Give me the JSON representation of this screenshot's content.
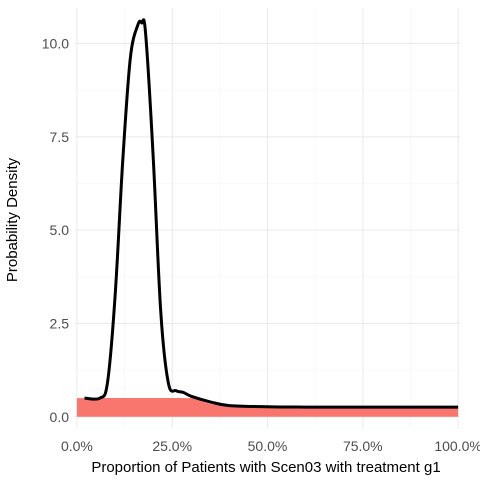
{
  "chart_data": {
    "type": "area",
    "title": "",
    "xlabel": "Proportion of Patients with Scen03 with treatment g1",
    "ylabel": "Probability Density",
    "xlim": [
      -0.005,
      1.005
    ],
    "ylim": [
      -0.3,
      10.95
    ],
    "x_ticks": [
      0,
      0.25,
      0.5,
      0.75,
      1.0
    ],
    "x_tick_labels": [
      "0.0%",
      "25.0%",
      "50.0%",
      "75.0%",
      "100.0%"
    ],
    "y_ticks": [
      0,
      2.5,
      5,
      7.5,
      10
    ],
    "y_tick_labels": [
      "0.0",
      "2.5",
      "5.0",
      "7.5",
      "10.0"
    ],
    "grid": true,
    "legend": "none",
    "colors": {
      "fill": "#f8766d",
      "line": "#000000"
    },
    "series": [
      {
        "type": "line",
        "x": [
          0.02,
          0.06,
          0.08,
          0.1,
          0.12,
          0.14,
          0.16,
          0.17,
          0.18,
          0.2,
          0.22,
          0.24,
          0.26,
          0.28,
          0.3,
          0.35,
          0.4,
          0.5,
          0.6,
          0.75,
          1.0
        ],
        "values": [
          0.5,
          0.5,
          0.9,
          3.2,
          6.8,
          9.6,
          10.5,
          10.55,
          10.3,
          7.0,
          2.8,
          0.9,
          0.7,
          0.65,
          0.55,
          0.4,
          0.3,
          0.27,
          0.26,
          0.26,
          0.26
        ]
      },
      {
        "type": "area",
        "x": [
          0.0,
          0.3,
          0.32,
          0.34,
          0.36,
          0.4,
          0.45,
          1.0
        ],
        "values": [
          0.5,
          0.5,
          0.45,
          0.38,
          0.33,
          0.28,
          0.26,
          0.26
        ]
      }
    ]
  }
}
